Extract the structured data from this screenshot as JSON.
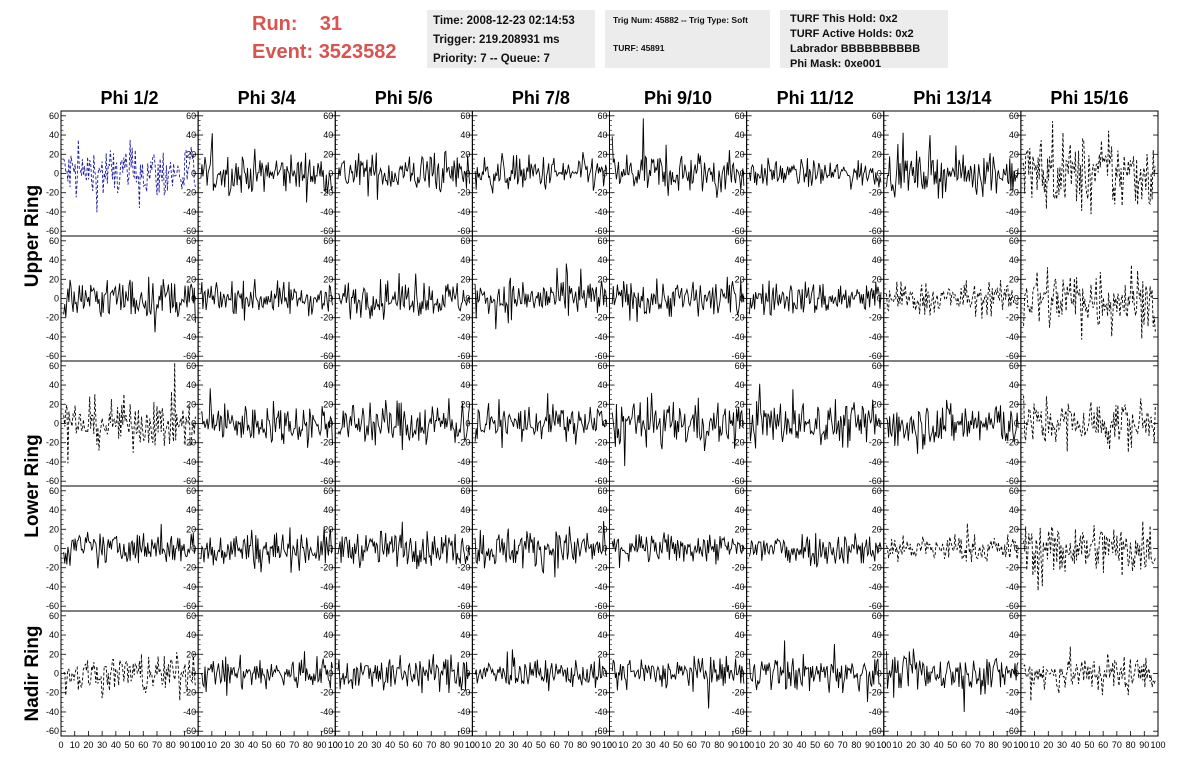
{
  "header": {
    "run_label": "Run:",
    "run_value": "31",
    "event_label": "Event:",
    "event_value": "3523582",
    "time": "Time: 2008-12-23 02:14:53",
    "trigger": "Trigger: 219.208931 ms",
    "priority": "Priority: 7 -- Queue: 7",
    "trig_num": "Trig Num: 45882 -- Trig Type: Soft",
    "turf": "TURF: 45891",
    "turf_hold": "TURF This Hold: 0x2",
    "turf_active": "TURF Active Holds: 0x2",
    "labrador": "Labrador BBBBBBBBBB",
    "phi_mask": "Phi Mask: 0xe001"
  },
  "colors": {
    "solid": "#000000",
    "dashed_black": "#000000",
    "dashed_blue": "#1a1aa0",
    "accent_text": "#d9534f"
  },
  "chart_data": {
    "type": "line",
    "columns": [
      "Phi 1/2",
      "Phi 3/4",
      "Phi 5/6",
      "Phi 7/8",
      "Phi 9/10",
      "Phi 11/12",
      "Phi 13/14",
      "Phi 15/16"
    ],
    "rows": [
      "Upper Ring",
      "Upper Ring",
      "Lower Ring",
      "Lower Ring",
      "Nadir Ring"
    ],
    "row_titles": [
      "Upper Ring",
      "Lower Ring",
      "Nadir Ring"
    ],
    "xlim": [
      0,
      100
    ],
    "ylim": [
      -65,
      65
    ],
    "x_ticks": [
      0,
      10,
      20,
      30,
      40,
      50,
      60,
      70,
      80,
      90,
      100
    ],
    "y_ticks": [
      -60,
      -40,
      -20,
      0,
      20,
      40,
      60
    ],
    "styles": [
      [
        "dashed-blue",
        "solid",
        "solid",
        "solid",
        "solid",
        "solid",
        "solid",
        "dashed"
      ],
      [
        "solid",
        "solid",
        "solid",
        "solid",
        "solid",
        "solid",
        "dashed",
        "dashed"
      ],
      [
        "dashed",
        "solid",
        "solid",
        "solid",
        "solid",
        "solid",
        "solid",
        "dashed"
      ],
      [
        "solid",
        "solid",
        "solid",
        "solid",
        "solid",
        "solid",
        "dashed",
        "dashed"
      ],
      [
        "dashed",
        "solid",
        "solid",
        "solid",
        "solid",
        "solid",
        "solid",
        "dashed"
      ]
    ],
    "amplitudes": [
      [
        22,
        15,
        15,
        13,
        16,
        10,
        15,
        28
      ],
      [
        15,
        12,
        13,
        15,
        14,
        13,
        12,
        25
      ],
      [
        18,
        15,
        17,
        14,
        17,
        17,
        18,
        18
      ],
      [
        12,
        14,
        13,
        15,
        11,
        13,
        10,
        20
      ],
      [
        15,
        12,
        13,
        10,
        12,
        13,
        14,
        15
      ]
    ]
  }
}
